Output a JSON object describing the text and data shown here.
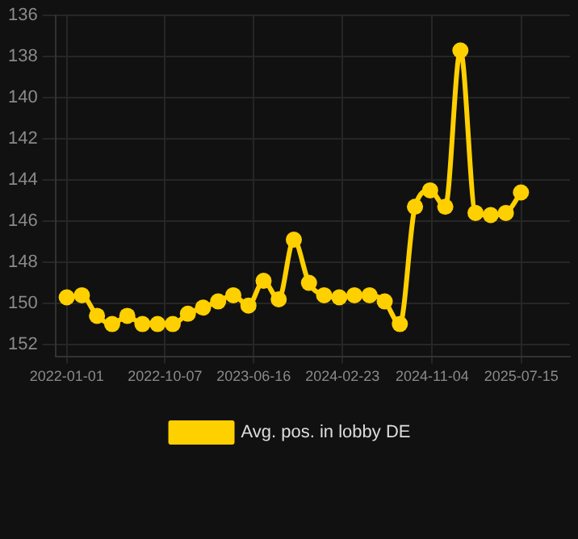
{
  "chart_data": {
    "type": "line",
    "legend": "bottom",
    "grid": true,
    "marker": "circle",
    "line_style": "solid",
    "x": [
      "2022-01-01",
      "2022-02-13",
      "2022-03-28",
      "2022-05-10",
      "2022-06-22",
      "2022-08-04",
      "2022-09-16",
      "2022-10-29",
      "2022-12-11",
      "2023-01-23",
      "2023-03-07",
      "2023-04-19",
      "2023-06-01",
      "2023-07-14",
      "2023-08-26",
      "2023-10-08",
      "2023-11-20",
      "2024-01-02",
      "2024-02-14",
      "2024-03-28",
      "2024-05-10",
      "2024-06-22",
      "2024-08-04",
      "2024-09-16",
      "2024-10-29",
      "2024-12-11",
      "2025-01-23",
      "2025-03-07",
      "2025-04-19",
      "2025-06-01",
      "2025-07-14"
    ],
    "series": [
      {
        "name": "Avg. pos. in lobby DE",
        "color": "#ffd000",
        "values": [
          149.7,
          149.6,
          150.6,
          151.0,
          150.6,
          151.0,
          151.0,
          151.0,
          150.5,
          150.2,
          149.9,
          149.6,
          150.1,
          148.9,
          149.8,
          146.9,
          149.0,
          149.6,
          149.7,
          149.6,
          149.6,
          149.9,
          151.0,
          145.3,
          144.5,
          145.3,
          137.7,
          145.6,
          145.7,
          145.6,
          144.6
        ]
      }
    ],
    "xlim": [
      "2021-11-30",
      "2025-11-30"
    ],
    "xticks": [
      "2022-01-01",
      "2022-10-07",
      "2023-06-16",
      "2024-02-23",
      "2024-11-04",
      "2025-07-15"
    ],
    "ylim": [
      152.6,
      136
    ],
    "yticks": [
      136,
      138,
      140,
      142,
      144,
      146,
      148,
      150,
      152
    ]
  }
}
